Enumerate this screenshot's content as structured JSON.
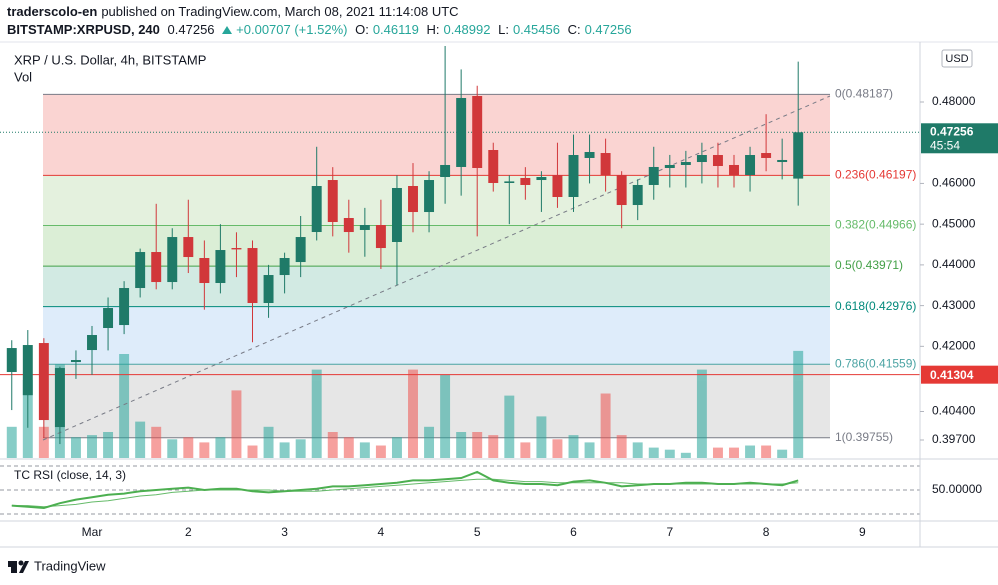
{
  "header": {
    "author": "traderscolo-en",
    "published": "published on TradingView.com, March 08, 2021 11:14:08 UTC",
    "symbol": "BITSTAMP:XRPUSD, 240",
    "last": 0.47256,
    "change": "+0.00707 (+1.52%)",
    "ohlc": [
      {
        "label": "O:",
        "value": 0.46119
      },
      {
        "label": "H:",
        "value": 0.48992
      },
      {
        "label": "L:",
        "value": 0.45456
      },
      {
        "label": "C:",
        "value": 0.47256
      }
    ]
  },
  "chart_data": {
    "type": "candlestick",
    "title": "XRP / U.S. Dollar, 4h, BITSTAMP",
    "volume_label": "Vol",
    "currency": "USD",
    "xlim": [
      0.0446,
      9.5981
    ],
    "xticks": [
      {
        "value": 1,
        "label": "Mar"
      },
      2,
      3,
      4,
      5,
      6,
      7,
      8,
      9
    ],
    "ylim": [
      0.39258,
      0.49473
    ],
    "yticks": [
      {
        "value": 0.397,
        "label": "0.39700"
      },
      {
        "value": 0.404,
        "label": "0.40400"
      },
      {
        "value": 0.42,
        "label": "0.42000"
      },
      {
        "value": 0.43,
        "label": "0.43000"
      },
      {
        "value": 0.44,
        "label": "0.44000"
      },
      {
        "value": 0.45,
        "label": "0.45000"
      },
      {
        "value": 0.46,
        "label": "0.46000"
      },
      {
        "value": 0.48,
        "label": "0.48000"
      }
    ],
    "grid": false,
    "up_color": "#1f7a68",
    "down_color": "#d1373a",
    "volume_up_color": "#26a69a",
    "volume_down_color": "#ef5350",
    "x": [
      0.1667,
      0.3333,
      0.5,
      0.6667,
      0.8333,
      1,
      1.1667,
      1.3333,
      1.5,
      1.6667,
      1.8333,
      2,
      2.1667,
      2.3333,
      2.5,
      2.6667,
      2.8333,
      3,
      3.1667,
      3.3333,
      3.5,
      3.6667,
      3.8333,
      4,
      4.1667,
      4.3333,
      4.5,
      4.6667,
      4.8333,
      5,
      5.1667,
      5.3333,
      5.5,
      5.6667,
      5.8333,
      6,
      6.1667,
      6.3333,
      6.5,
      6.6667,
      6.8333,
      7,
      7.1667,
      7.3333,
      7.5,
      7.6667,
      7.8333,
      8,
      8.1667,
      8.3333
    ],
    "candles": {
      "open": [
        0.41369,
        0.408,
        0.42081,
        0.40018,
        0.41614,
        0.41909,
        0.4245,
        0.42523,
        0.43432,
        0.44316,
        0.43579,
        0.44684,
        0.44169,
        0.43555,
        0.44414,
        0.44414,
        0.43064,
        0.43751,
        0.4407,
        0.44807,
        0.46084,
        0.45151,
        0.44857,
        0.44979,
        0.44562,
        0.45937,
        0.45298,
        0.46158,
        0.46404,
        0.48147,
        0.46821,
        0.46011,
        0.46134,
        0.46084,
        0.46207,
        0.45667,
        0.46625,
        0.46747,
        0.46207,
        0.4547,
        0.45962,
        0.46379,
        0.46453,
        0.46526,
        0.46698,
        0.46453,
        0.46207,
        0.46747,
        0.46526,
        0.46119
      ],
      "high": [
        0.4215,
        0.424,
        0.422,
        0.415,
        0.419,
        0.425,
        0.432,
        0.436,
        0.444,
        0.455,
        0.449,
        0.456,
        0.446,
        0.45,
        0.448,
        0.446,
        0.44,
        0.443,
        0.452,
        0.469,
        0.464,
        0.456,
        0.454,
        0.456,
        0.462,
        0.465,
        0.463,
        0.49375,
        0.488,
        0.484,
        0.47,
        0.462,
        0.464,
        0.463,
        0.47,
        0.472,
        0.472,
        0.471,
        0.463,
        0.461,
        0.469,
        0.467,
        0.468,
        0.47,
        0.47,
        0.467,
        0.469,
        0.477,
        0.471,
        0.48992
      ],
      "low": [
        0.40435,
        0.4,
        0.3975,
        0.396,
        0.412,
        0.413,
        0.419,
        0.423,
        0.432,
        0.434,
        0.434,
        0.438,
        0.429,
        0.433,
        0.437,
        0.421,
        0.427,
        0.433,
        0.437,
        0.446,
        0.447,
        0.443,
        0.442,
        0.439,
        0.435,
        0.448,
        0.448,
        0.455,
        0.457,
        0.447,
        0.458,
        0.45,
        0.456,
        0.453,
        0.454,
        0.453,
        0.46,
        0.458,
        0.449,
        0.451,
        0.456,
        0.459,
        0.459,
        0.46,
        0.459,
        0.459,
        0.458,
        0.463,
        0.461,
        0.45456
      ],
      "close": [
        0.41958,
        0.42032,
        0.4019,
        0.41467,
        0.41664,
        0.42278,
        0.42941,
        0.43432,
        0.44316,
        0.43579,
        0.44684,
        0.44193,
        0.43555,
        0.44365,
        0.4438,
        0.43064,
        0.43751,
        0.44169,
        0.44684,
        0.45937,
        0.45053,
        0.44807,
        0.44979,
        0.44414,
        0.45888,
        0.45298,
        0.46084,
        0.46453,
        0.48098,
        0.46379,
        0.46011,
        0.4605,
        0.45962,
        0.46158,
        0.45667,
        0.46698,
        0.46772,
        0.46207,
        0.4547,
        0.45962,
        0.46404,
        0.46453,
        0.46526,
        0.46698,
        0.46428,
        0.46207,
        0.46698,
        0.46625,
        0.46576,
        0.47256
      ],
      "volume": [
        30,
        75,
        30,
        90,
        20,
        22,
        25,
        100,
        35,
        30,
        18,
        20,
        15,
        20,
        65,
        12,
        30,
        15,
        18,
        85,
        25,
        20,
        15,
        12,
        20,
        85,
        30,
        80,
        25,
        25,
        22,
        60,
        15,
        40,
        18,
        22,
        15,
        62,
        22,
        15,
        10,
        8,
        5,
        85,
        10,
        10,
        12,
        12,
        8,
        103
      ]
    },
    "volume_lim": [
      0,
      400
    ],
    "fib": {
      "levels": [
        {
          "label": "0(0.48187)",
          "value": 0.48187,
          "color": "#787b86",
          "fill": "#fad4d2"
        },
        {
          "label": "0.236(0.46197)",
          "value": 0.46197,
          "color": "#e53935",
          "fill": "#e4f1de"
        },
        {
          "label": "0.382(0.44966)",
          "value": 0.44966,
          "color": "#66bb6a",
          "fill": "#dbeed6"
        },
        {
          "label": "0.5(0.43971)",
          "value": 0.43971,
          "color": "#43a047",
          "fill": "#d2eae3"
        },
        {
          "label": "0.618(0.42976)",
          "value": 0.42976,
          "color": "#00897b",
          "fill": "#deecfa"
        },
        {
          "label": "0.786(0.41559)",
          "value": 0.41559,
          "color": "#4aa3a3",
          "fill": "#e6e6e6"
        },
        {
          "label": "1(0.39755)",
          "value": 0.39755,
          "color": "#787b86"
        }
      ]
    },
    "price_lines": [
      {
        "value": 0.41304,
        "color": "#e53935"
      }
    ],
    "last_price": {
      "value": 0.47256,
      "countdown": "45:54",
      "color": "#1f7a68"
    },
    "rsi": {
      "label": "TC RSI (close, 14, 3)",
      "color": "#4caf50",
      "ma_color": "#66bb6a",
      "ylim": [
        25,
        73.3
      ],
      "yticks": [
        {
          "value": 50,
          "label": "50.00000"
        }
      ],
      "bands": [
        70,
        30
      ],
      "values": [
        37,
        36,
        35,
        39,
        42,
        44,
        46,
        47,
        49,
        50,
        51,
        52,
        50,
        51,
        51,
        49,
        48,
        49,
        50,
        51,
        53,
        53,
        54,
        55,
        56,
        58,
        58,
        59,
        60,
        65,
        58,
        56,
        55,
        55,
        54,
        57,
        58,
        56,
        53,
        54,
        55,
        55,
        56,
        56,
        55,
        55,
        56,
        55,
        54,
        58
      ],
      "ma": [
        37,
        37,
        36,
        37,
        38,
        40,
        41,
        43,
        45,
        46,
        48,
        49,
        50,
        50,
        50,
        50,
        50,
        49,
        49,
        49,
        50,
        51,
        52,
        53,
        54,
        55,
        56,
        57,
        58,
        59,
        59,
        58,
        57,
        57,
        56,
        56,
        56,
        56,
        56,
        55,
        55,
        55,
        55,
        55,
        55,
        55,
        55,
        55,
        55,
        56
      ]
    }
  },
  "footer": {
    "brand": "TradingView"
  }
}
